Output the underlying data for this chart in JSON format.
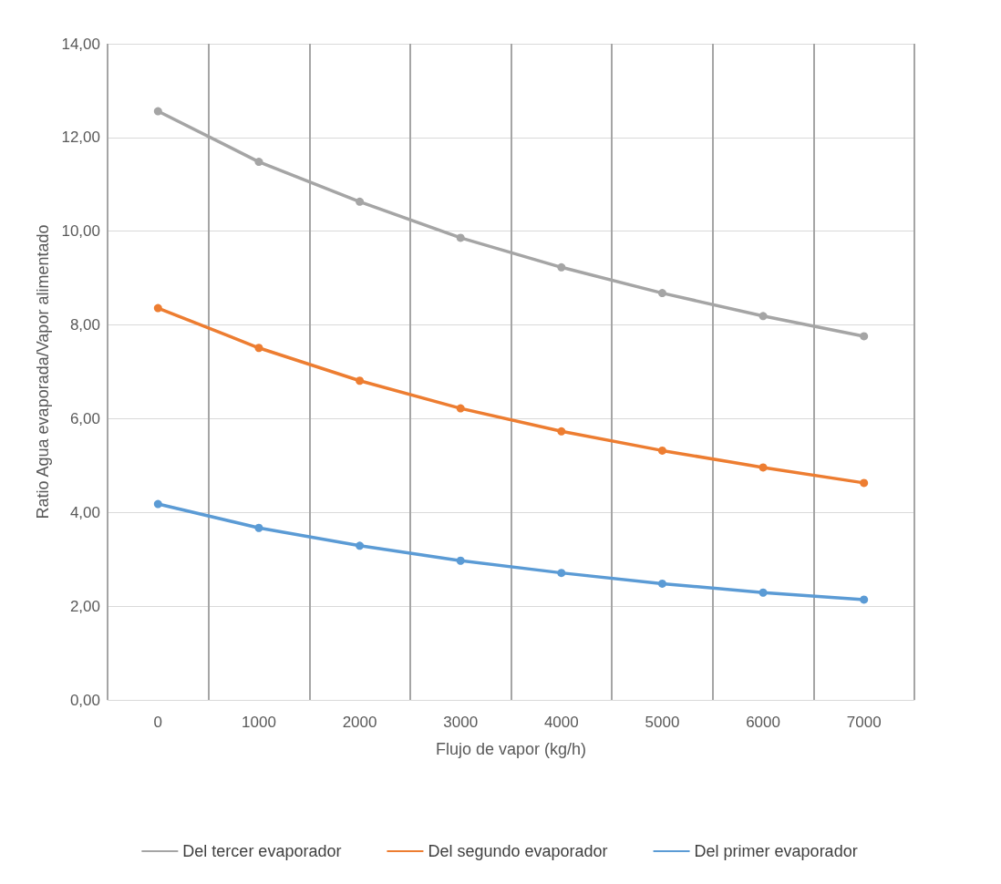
{
  "chart_data": {
    "type": "line",
    "xlabel": "Flujo de vapor (kg/h)",
    "ylabel": "Ratio Agua evaporada/Vapor alimentado",
    "categories": [
      "0",
      "1000",
      "2000",
      "3000",
      "4000",
      "5000",
      "6000",
      "7000"
    ],
    "series": [
      {
        "name": "Del tercer evaporador",
        "color": "#a5a5a5",
        "values": [
          12.56,
          11.48,
          10.63,
          9.86,
          9.23,
          8.68,
          8.19,
          7.76
        ]
      },
      {
        "name": "Del segundo evaporador",
        "color": "#ed7d31",
        "values": [
          8.36,
          7.51,
          6.81,
          6.22,
          5.73,
          5.32,
          4.96,
          4.63
        ]
      },
      {
        "name": "Del primer evaporador",
        "color": "#5b9bd5",
        "values": [
          4.18,
          3.67,
          3.29,
          2.97,
          2.71,
          2.48,
          2.29,
          2.14
        ]
      }
    ],
    "ylim": [
      0,
      14
    ],
    "yticks": [
      {
        "value": 0,
        "label": "0,00"
      },
      {
        "value": 2,
        "label": "2,00"
      },
      {
        "value": 4,
        "label": "4,00"
      },
      {
        "value": 6,
        "label": "6,00"
      },
      {
        "value": 8,
        "label": "8,00"
      },
      {
        "value": 10,
        "label": "10,00"
      },
      {
        "value": 12,
        "label": "12,00"
      },
      {
        "value": 14,
        "label": "14,00"
      }
    ],
    "grid": true,
    "legend": "bottom",
    "marker": "circle",
    "line_style": "solid"
  }
}
